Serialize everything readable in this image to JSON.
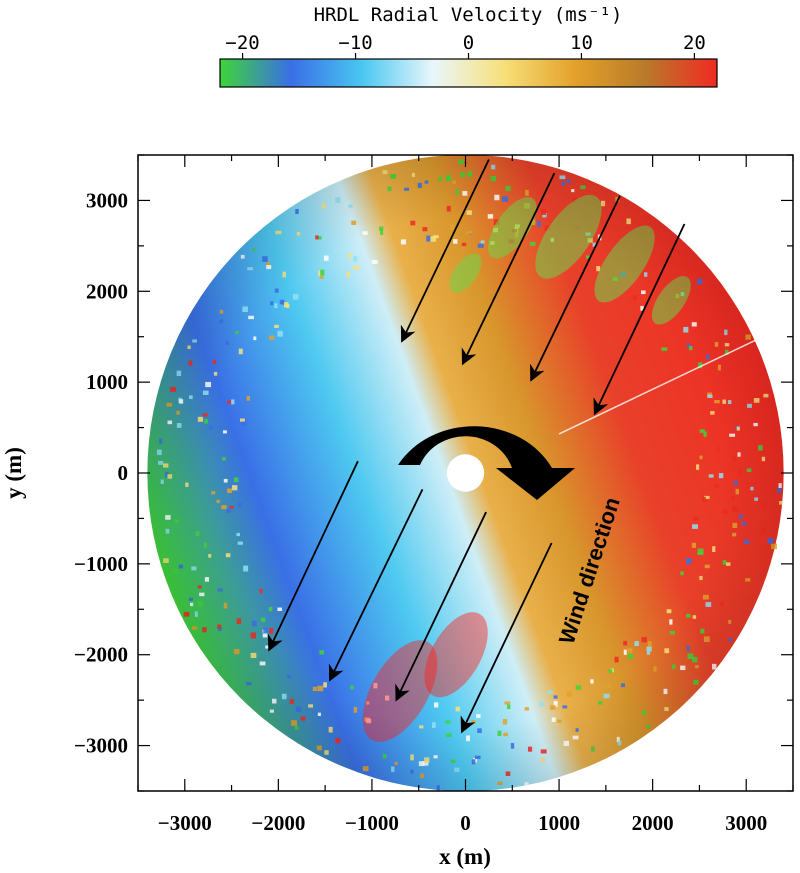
{
  "chart_data": {
    "type": "heatmap",
    "subtype": "radar-ppi-scan",
    "title": "HRDL Radial Velocity (ms⁻¹)",
    "xlabel": "x (m)",
    "ylabel": "y (m)",
    "xlim": [
      -3500,
      3500
    ],
    "ylim": [
      -3500,
      3500
    ],
    "xticks": [
      -3000,
      -2000,
      -1000,
      0,
      1000,
      2000,
      3000
    ],
    "yticks": [
      -3000,
      -2000,
      -1000,
      0,
      1000,
      2000,
      3000
    ],
    "xtick_labels": [
      "−3000",
      "−2000",
      "−1000",
      "0",
      "1000",
      "2000",
      "3000"
    ],
    "ytick_labels": [
      "−3000",
      "−2000",
      "−1000",
      "0",
      "1000",
      "2000",
      "3000"
    ],
    "scan_range_max": 3400,
    "scan_range_min": 200,
    "colorbar": {
      "range": [
        -22,
        22
      ],
      "ticks": [
        -20,
        -10,
        0,
        10,
        20
      ],
      "tick_labels": [
        "−20",
        "−10",
        "0",
        "10",
        "20"
      ],
      "colors": [
        "#3fd43a",
        "#3a6fe6",
        "#49c7f0",
        "#e9f7fb",
        "#f7e07a",
        "#e3a12a",
        "#b87a2a",
        "#f02a22"
      ]
    },
    "velocity_field": {
      "dipole_axis_deg": 110,
      "peak_approaching": -18,
      "peak_receding": 20
    },
    "wind_arrows": [
      {
        "from": [
          250,
          3450
        ],
        "to": [
          -680,
          1450
        ]
      },
      {
        "from": [
          950,
          3300
        ],
        "to": [
          -30,
          1200
        ]
      },
      {
        "from": [
          1650,
          3050
        ],
        "to": [
          700,
          1020
        ]
      },
      {
        "from": [
          2340,
          2740
        ],
        "to": [
          1380,
          650
        ]
      },
      {
        "from": [
          -1150,
          130
        ],
        "to": [
          -2100,
          -1950
        ]
      },
      {
        "from": [
          -460,
          -180
        ],
        "to": [
          -1450,
          -2280
        ]
      },
      {
        "from": [
          220,
          -430
        ],
        "to": [
          -740,
          -2500
        ]
      },
      {
        "from": [
          920,
          -770
        ],
        "to": [
          -40,
          -2850
        ]
      }
    ],
    "annotations": [
      {
        "text": "Wind direction",
        "x": 1400,
        "y": -1100,
        "rotate_deg": -72
      }
    ]
  }
}
